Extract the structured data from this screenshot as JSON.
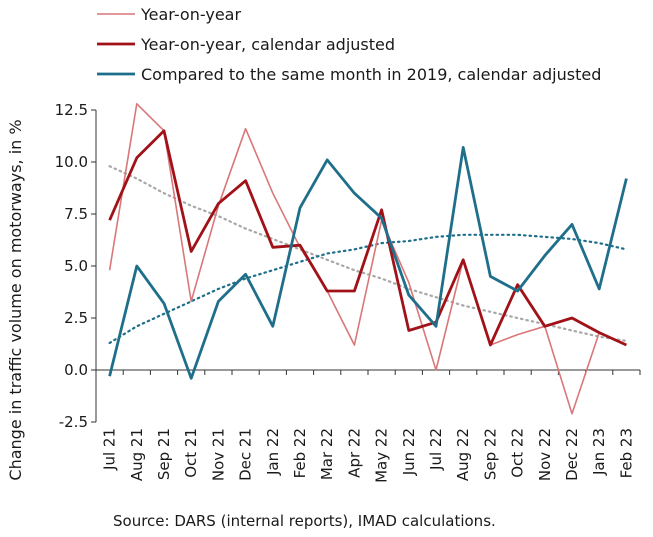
{
  "chart_data": {
    "type": "line",
    "title": "",
    "ylabel": "Change in traffic volume on motorways, in %",
    "xlabel": "",
    "ylim": [
      -2.5,
      12.5
    ],
    "yticks": [
      -2.5,
      0.0,
      2.5,
      5.0,
      7.5,
      10.0,
      12.5
    ],
    "ytick_labels": [
      "-2.5",
      "0.0",
      "2.5",
      "5.0",
      "7.5",
      "10.0",
      "12.5"
    ],
    "categories": [
      "Jul 21",
      "Aug 21",
      "Sep 21",
      "Oct 21",
      "Nov 21",
      "Dec 21",
      "Jan 22",
      "Feb 22",
      "Mar 22",
      "Apr 22",
      "May 22",
      "Jun 22",
      "Jul 22",
      "Aug 22",
      "Sep 22",
      "Oct 22",
      "Nov 22",
      "Dec 22",
      "Jan 23",
      "Feb 23"
    ],
    "legend_position": "top",
    "grid": false,
    "series": [
      {
        "name": "Year-on-year",
        "color": "#d9777a",
        "values": [
          4.8,
          12.8,
          11.5,
          3.3,
          7.9,
          11.6,
          8.5,
          5.9,
          3.8,
          1.2,
          7.2,
          4.2,
          0.0,
          5.3,
          1.2,
          1.7,
          2.1,
          -2.1,
          1.8,
          1.2
        ]
      },
      {
        "name": "Year-on-year, calendar adjusted",
        "color": "#a01218",
        "values": [
          7.2,
          10.2,
          11.5,
          5.7,
          8.0,
          9.1,
          5.9,
          6.0,
          3.8,
          3.8,
          7.7,
          1.9,
          2.3,
          5.3,
          1.2,
          4.1,
          2.1,
          2.5,
          1.8,
          1.2
        ]
      },
      {
        "name": "Compared to the same month in 2019, calendar adjusted",
        "color": "#1f6f8b",
        "values": [
          -0.3,
          5.0,
          3.2,
          -0.4,
          3.3,
          4.6,
          2.1,
          7.8,
          10.1,
          8.5,
          7.3,
          3.6,
          2.1,
          10.7,
          4.5,
          3.8,
          5.5,
          7.0,
          3.9,
          9.2
        ]
      }
    ],
    "trendlines": [
      {
        "color": "#a8a8a8",
        "values": [
          9.8,
          9.2,
          8.5,
          7.9,
          7.4,
          6.8,
          6.3,
          5.8,
          5.3,
          4.8,
          4.4,
          3.9,
          3.5,
          3.1,
          2.8,
          2.5,
          2.2,
          1.9,
          1.6,
          1.4
        ]
      },
      {
        "color": "#1f6f8b",
        "values": [
          1.3,
          2.1,
          2.7,
          3.3,
          3.9,
          4.4,
          4.8,
          5.2,
          5.6,
          5.8,
          6.1,
          6.2,
          6.4,
          6.5,
          6.5,
          6.5,
          6.4,
          6.3,
          6.1,
          5.8
        ]
      }
    ],
    "source": "Source: DARS (internal reports), IMAD calculations."
  }
}
